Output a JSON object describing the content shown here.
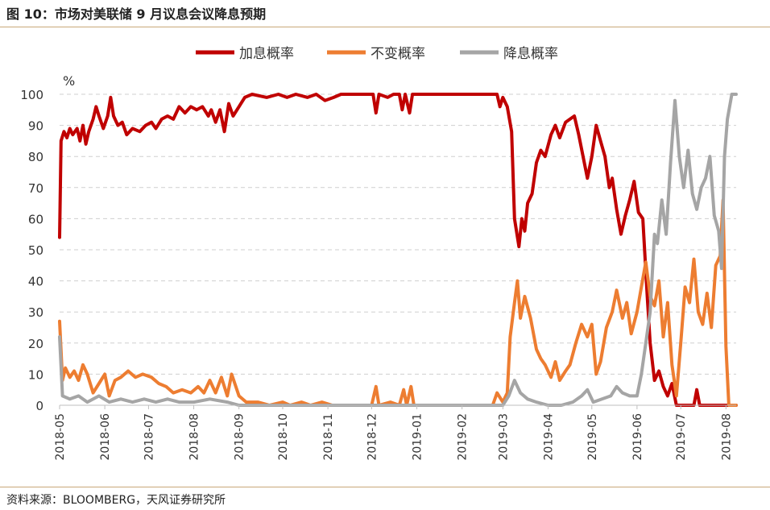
{
  "figure": {
    "title": "图 10：市场对美联储 9 月议息会议降息预期",
    "source": "资料来源：BLOOMBERG，天风证券研究所"
  },
  "chart_data": {
    "type": "line",
    "ylabel": "%",
    "ylim": [
      0,
      100
    ],
    "yticks": [
      0,
      10,
      20,
      30,
      40,
      50,
      60,
      70,
      80,
      90,
      100
    ],
    "xlim": [
      "2018-05-01",
      "2019-08-08"
    ],
    "xticks": [
      "2018-05",
      "2018-06",
      "2018-07",
      "2018-08",
      "2018-09",
      "2018-10",
      "2018-11",
      "2018-12",
      "2019-01",
      "2019-02",
      "2019-03",
      "2019-04",
      "2019-05",
      "2019-06",
      "2019-07",
      "2019-08"
    ],
    "grid": "horizontal-dashed",
    "legend": "top-center",
    "series": [
      {
        "name": "加息概率",
        "color": "#c00000",
        "points": [
          [
            "2018-05-01",
            54
          ],
          [
            "2018-05-02",
            85
          ],
          [
            "2018-05-04",
            88
          ],
          [
            "2018-05-06",
            86
          ],
          [
            "2018-05-08",
            89
          ],
          [
            "2018-05-10",
            87
          ],
          [
            "2018-05-13",
            89
          ],
          [
            "2018-05-15",
            85
          ],
          [
            "2018-05-17",
            90
          ],
          [
            "2018-05-19",
            84
          ],
          [
            "2018-05-21",
            88
          ],
          [
            "2018-05-24",
            92
          ],
          [
            "2018-05-26",
            96
          ],
          [
            "2018-05-28",
            93
          ],
          [
            "2018-05-31",
            89
          ],
          [
            "2018-06-03",
            93
          ],
          [
            "2018-06-05",
            99
          ],
          [
            "2018-06-07",
            93
          ],
          [
            "2018-06-10",
            90
          ],
          [
            "2018-06-13",
            91
          ],
          [
            "2018-06-16",
            87
          ],
          [
            "2018-06-20",
            89
          ],
          [
            "2018-06-25",
            88
          ],
          [
            "2018-06-29",
            90
          ],
          [
            "2018-07-03",
            91
          ],
          [
            "2018-07-06",
            89
          ],
          [
            "2018-07-10",
            92
          ],
          [
            "2018-07-14",
            93
          ],
          [
            "2018-07-18",
            92
          ],
          [
            "2018-07-22",
            96
          ],
          [
            "2018-07-26",
            94
          ],
          [
            "2018-07-30",
            96
          ],
          [
            "2018-08-03",
            95
          ],
          [
            "2018-08-07",
            96
          ],
          [
            "2018-08-11",
            93
          ],
          [
            "2018-08-13",
            95
          ],
          [
            "2018-08-16",
            91
          ],
          [
            "2018-08-19",
            95
          ],
          [
            "2018-08-22",
            88
          ],
          [
            "2018-08-25",
            97
          ],
          [
            "2018-08-28",
            93
          ],
          [
            "2018-09-01",
            96
          ],
          [
            "2018-09-05",
            99
          ],
          [
            "2018-09-10",
            100
          ],
          [
            "2018-09-20",
            99
          ],
          [
            "2018-09-28",
            100
          ],
          [
            "2018-10-04",
            99
          ],
          [
            "2018-10-10",
            100
          ],
          [
            "2018-10-18",
            99
          ],
          [
            "2018-10-24",
            100
          ],
          [
            "2018-10-30",
            98
          ],
          [
            "2018-11-05",
            99
          ],
          [
            "2018-11-10",
            100
          ],
          [
            "2018-11-30",
            100
          ],
          [
            "2018-12-02",
            100
          ],
          [
            "2018-12-04",
            94
          ],
          [
            "2018-12-06",
            100
          ],
          [
            "2018-12-12",
            99
          ],
          [
            "2018-12-16",
            100
          ],
          [
            "2018-12-20",
            100
          ],
          [
            "2018-12-22",
            95
          ],
          [
            "2018-12-24",
            100
          ],
          [
            "2018-12-27",
            94
          ],
          [
            "2018-12-29",
            100
          ],
          [
            "2019-01-15",
            100
          ],
          [
            "2019-02-01",
            100
          ],
          [
            "2019-02-15",
            100
          ],
          [
            "2019-02-25",
            100
          ],
          [
            "2019-02-27",
            96
          ],
          [
            "2019-03-01",
            99
          ],
          [
            "2019-03-04",
            96
          ],
          [
            "2019-03-07",
            88
          ],
          [
            "2019-03-09",
            60
          ],
          [
            "2019-03-12",
            51
          ],
          [
            "2019-03-14",
            60
          ],
          [
            "2019-03-16",
            56
          ],
          [
            "2019-03-18",
            65
          ],
          [
            "2019-03-21",
            68
          ],
          [
            "2019-03-24",
            78
          ],
          [
            "2019-03-27",
            82
          ],
          [
            "2019-03-30",
            80
          ],
          [
            "2019-04-03",
            87
          ],
          [
            "2019-04-06",
            90
          ],
          [
            "2019-04-09",
            86
          ],
          [
            "2019-04-13",
            91
          ],
          [
            "2019-04-16",
            92
          ],
          [
            "2019-04-19",
            93
          ],
          [
            "2019-04-22",
            87
          ],
          [
            "2019-04-25",
            80
          ],
          [
            "2019-04-28",
            73
          ],
          [
            "2019-05-01",
            80
          ],
          [
            "2019-05-04",
            90
          ],
          [
            "2019-05-07",
            85
          ],
          [
            "2019-05-10",
            80
          ],
          [
            "2019-05-13",
            70
          ],
          [
            "2019-05-15",
            73
          ],
          [
            "2019-05-18",
            63
          ],
          [
            "2019-05-21",
            55
          ],
          [
            "2019-05-24",
            61
          ],
          [
            "2019-05-27",
            66
          ],
          [
            "2019-05-30",
            72
          ],
          [
            "2019-06-02",
            62
          ],
          [
            "2019-06-05",
            60
          ],
          [
            "2019-06-08",
            35
          ],
          [
            "2019-06-10",
            20
          ],
          [
            "2019-06-13",
            8
          ],
          [
            "2019-06-16",
            11
          ],
          [
            "2019-06-19",
            6
          ],
          [
            "2019-06-22",
            3
          ],
          [
            "2019-06-25",
            7
          ],
          [
            "2019-06-28",
            0
          ],
          [
            "2019-07-10",
            0
          ],
          [
            "2019-07-12",
            5
          ],
          [
            "2019-07-14",
            0
          ],
          [
            "2019-08-08",
            0
          ]
        ]
      },
      {
        "name": "不变概率",
        "color": "#ed7d31",
        "points": [
          [
            "2018-05-01",
            27
          ],
          [
            "2018-05-03",
            8
          ],
          [
            "2018-05-05",
            12
          ],
          [
            "2018-05-08",
            9
          ],
          [
            "2018-05-11",
            11
          ],
          [
            "2018-05-14",
            8
          ],
          [
            "2018-05-17",
            13
          ],
          [
            "2018-05-20",
            10
          ],
          [
            "2018-05-24",
            4
          ],
          [
            "2018-05-28",
            7
          ],
          [
            "2018-06-01",
            10
          ],
          [
            "2018-06-04",
            3
          ],
          [
            "2018-06-08",
            8
          ],
          [
            "2018-06-12",
            9
          ],
          [
            "2018-06-17",
            11
          ],
          [
            "2018-06-22",
            9
          ],
          [
            "2018-06-27",
            10
          ],
          [
            "2018-07-03",
            9
          ],
          [
            "2018-07-08",
            7
          ],
          [
            "2018-07-13",
            6
          ],
          [
            "2018-07-18",
            4
          ],
          [
            "2018-07-24",
            5
          ],
          [
            "2018-07-30",
            4
          ],
          [
            "2018-08-04",
            6
          ],
          [
            "2018-08-08",
            4
          ],
          [
            "2018-08-12",
            8
          ],
          [
            "2018-08-16",
            4
          ],
          [
            "2018-08-20",
            9
          ],
          [
            "2018-08-24",
            3
          ],
          [
            "2018-08-27",
            10
          ],
          [
            "2018-09-01",
            3
          ],
          [
            "2018-09-06",
            1
          ],
          [
            "2018-09-14",
            1
          ],
          [
            "2018-09-22",
            0
          ],
          [
            "2018-10-01",
            1
          ],
          [
            "2018-10-06",
            0
          ],
          [
            "2018-10-14",
            1
          ],
          [
            "2018-10-20",
            0
          ],
          [
            "2018-10-28",
            1
          ],
          [
            "2018-11-04",
            0
          ],
          [
            "2018-11-20",
            0
          ],
          [
            "2018-12-01",
            0
          ],
          [
            "2018-12-04",
            6
          ],
          [
            "2018-12-06",
            0
          ],
          [
            "2018-12-14",
            1
          ],
          [
            "2018-12-20",
            0
          ],
          [
            "2018-12-23",
            5
          ],
          [
            "2018-12-25",
            0
          ],
          [
            "2018-12-28",
            6
          ],
          [
            "2018-12-30",
            0
          ],
          [
            "2019-02-22",
            0
          ],
          [
            "2019-02-25",
            4
          ],
          [
            "2019-03-01",
            1
          ],
          [
            "2019-03-04",
            4
          ],
          [
            "2019-03-06",
            22
          ],
          [
            "2019-03-09",
            33
          ],
          [
            "2019-03-11",
            40
          ],
          [
            "2019-03-13",
            28
          ],
          [
            "2019-03-16",
            35
          ],
          [
            "2019-03-20",
            28
          ],
          [
            "2019-03-24",
            18
          ],
          [
            "2019-03-27",
            15
          ],
          [
            "2019-03-30",
            13
          ],
          [
            "2019-04-03",
            9
          ],
          [
            "2019-04-06",
            14
          ],
          [
            "2019-04-09",
            8
          ],
          [
            "2019-04-13",
            11
          ],
          [
            "2019-04-16",
            13
          ],
          [
            "2019-04-20",
            20
          ],
          [
            "2019-04-24",
            26
          ],
          [
            "2019-04-28",
            22
          ],
          [
            "2019-05-01",
            26
          ],
          [
            "2019-05-04",
            10
          ],
          [
            "2019-05-07",
            14
          ],
          [
            "2019-05-11",
            25
          ],
          [
            "2019-05-15",
            30
          ],
          [
            "2019-05-18",
            37
          ],
          [
            "2019-05-22",
            28
          ],
          [
            "2019-05-25",
            33
          ],
          [
            "2019-05-28",
            23
          ],
          [
            "2019-06-01",
            30
          ],
          [
            "2019-06-04",
            38
          ],
          [
            "2019-06-07",
            46
          ],
          [
            "2019-06-10",
            35
          ],
          [
            "2019-06-13",
            32
          ],
          [
            "2019-06-16",
            40
          ],
          [
            "2019-06-19",
            22
          ],
          [
            "2019-06-22",
            33
          ],
          [
            "2019-06-25",
            13
          ],
          [
            "2019-06-28",
            3
          ],
          [
            "2019-07-01",
            20
          ],
          [
            "2019-07-04",
            38
          ],
          [
            "2019-07-07",
            33
          ],
          [
            "2019-07-10",
            47
          ],
          [
            "2019-07-13",
            30
          ],
          [
            "2019-07-16",
            26
          ],
          [
            "2019-07-19",
            36
          ],
          [
            "2019-07-22",
            25
          ],
          [
            "2019-07-25",
            45
          ],
          [
            "2019-07-28",
            48
          ],
          [
            "2019-07-30",
            66
          ],
          [
            "2019-08-01",
            19
          ],
          [
            "2019-08-03",
            0
          ],
          [
            "2019-08-08",
            0
          ]
        ]
      },
      {
        "name": "降息概率",
        "color": "#a5a5a5",
        "points": [
          [
            "2018-05-01",
            22
          ],
          [
            "2018-05-03",
            3
          ],
          [
            "2018-05-08",
            2
          ],
          [
            "2018-05-14",
            3
          ],
          [
            "2018-05-20",
            1
          ],
          [
            "2018-05-28",
            3
          ],
          [
            "2018-06-04",
            1
          ],
          [
            "2018-06-12",
            2
          ],
          [
            "2018-06-20",
            1
          ],
          [
            "2018-06-28",
            2
          ],
          [
            "2018-07-06",
            1
          ],
          [
            "2018-07-14",
            2
          ],
          [
            "2018-07-22",
            1
          ],
          [
            "2018-08-01",
            1
          ],
          [
            "2018-08-12",
            2
          ],
          [
            "2018-08-24",
            1
          ],
          [
            "2018-09-01",
            0
          ],
          [
            "2019-02-26",
            0
          ],
          [
            "2019-03-01",
            0
          ],
          [
            "2019-03-05",
            3
          ],
          [
            "2019-03-09",
            8
          ],
          [
            "2019-03-13",
            4
          ],
          [
            "2019-03-18",
            2
          ],
          [
            "2019-03-24",
            1
          ],
          [
            "2019-04-01",
            0
          ],
          [
            "2019-04-10",
            0
          ],
          [
            "2019-04-18",
            1
          ],
          [
            "2019-04-24",
            3
          ],
          [
            "2019-04-28",
            5
          ],
          [
            "2019-05-02",
            1
          ],
          [
            "2019-05-08",
            2
          ],
          [
            "2019-05-14",
            3
          ],
          [
            "2019-05-18",
            6
          ],
          [
            "2019-05-22",
            4
          ],
          [
            "2019-05-27",
            3
          ],
          [
            "2019-06-01",
            3
          ],
          [
            "2019-06-04",
            10
          ],
          [
            "2019-06-07",
            20
          ],
          [
            "2019-06-10",
            30
          ],
          [
            "2019-06-13",
            55
          ],
          [
            "2019-06-15",
            52
          ],
          [
            "2019-06-18",
            66
          ],
          [
            "2019-06-21",
            55
          ],
          [
            "2019-06-24",
            78
          ],
          [
            "2019-06-27",
            98
          ],
          [
            "2019-06-30",
            80
          ],
          [
            "2019-07-03",
            70
          ],
          [
            "2019-07-06",
            82
          ],
          [
            "2019-07-09",
            68
          ],
          [
            "2019-07-12",
            63
          ],
          [
            "2019-07-15",
            70
          ],
          [
            "2019-07-18",
            73
          ],
          [
            "2019-07-21",
            80
          ],
          [
            "2019-07-24",
            61
          ],
          [
            "2019-07-27",
            56
          ],
          [
            "2019-07-29",
            44
          ],
          [
            "2019-07-31",
            80
          ],
          [
            "2019-08-02",
            92
          ],
          [
            "2019-08-05",
            100
          ],
          [
            "2019-08-08",
            100
          ]
        ]
      }
    ]
  }
}
